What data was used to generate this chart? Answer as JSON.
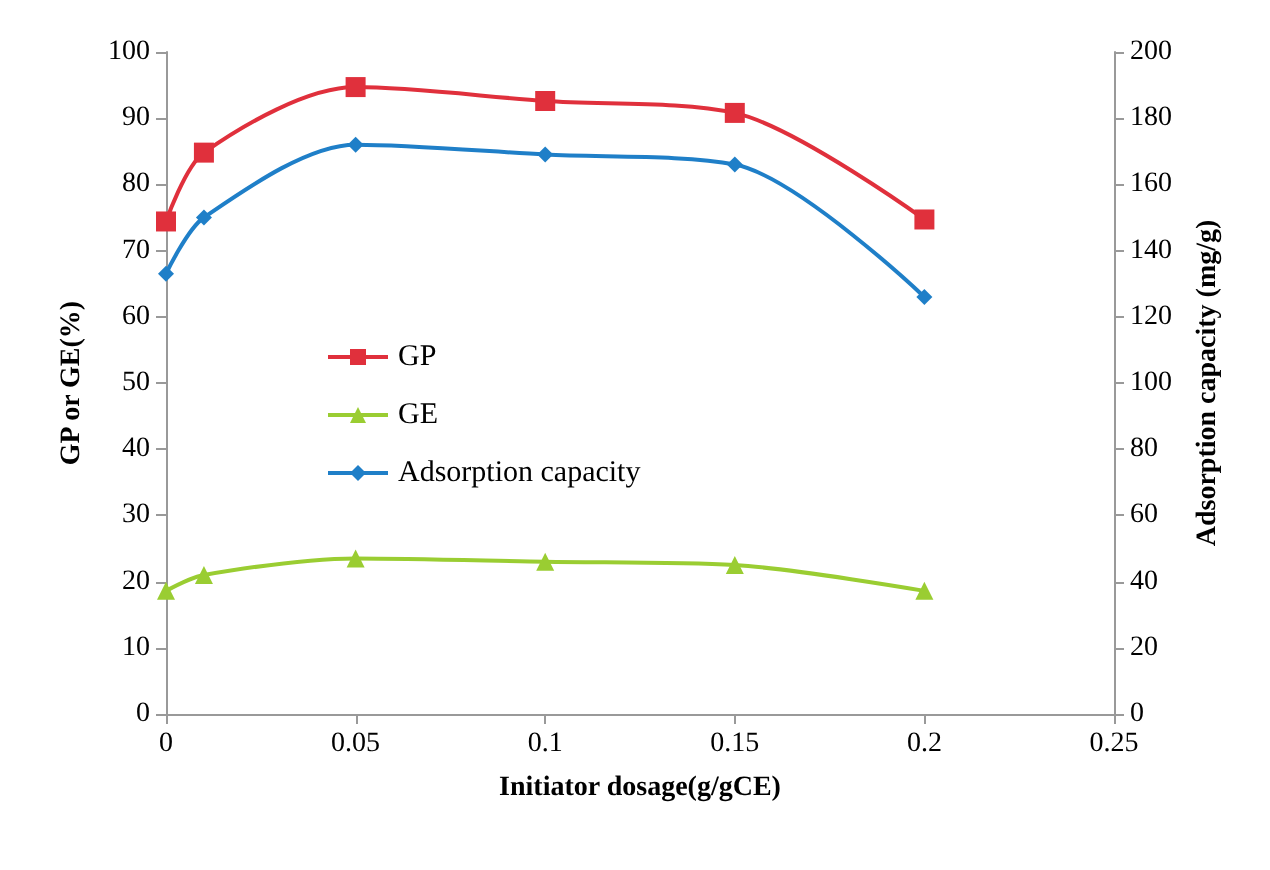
{
  "chart_data": {
    "type": "line",
    "xlabel": "Initiator dosage(g/gCE)",
    "ylabel": "GP or GE(%)",
    "y2label": "Adsorption capacity (mg/g)",
    "x": [
      0,
      0.01,
      0.05,
      0.1,
      0.15,
      0.2
    ],
    "series": [
      {
        "name": "GP",
        "color": "#e0303c",
        "marker": "square",
        "values": [
          74.4,
          84.8,
          94.7,
          92.6,
          90.8,
          74.7
        ]
      },
      {
        "name": "GE",
        "color": "#9acd32",
        "marker": "triangle",
        "values": [
          18.6,
          21,
          23.5,
          23,
          22.5,
          18.6
        ]
      },
      {
        "name": "Adsorption capacity",
        "color": "#1f7fc8",
        "marker": "diamond",
        "axis": "y2",
        "values": [
          133,
          150,
          172,
          169,
          166,
          126
        ]
      }
    ],
    "xlim": [
      0,
      0.25
    ],
    "xticks": [
      0,
      0.05,
      0.1,
      0.15,
      0.2,
      0.25
    ],
    "ylim": [
      0,
      100
    ],
    "yticks": [
      0,
      10,
      20,
      30,
      40,
      50,
      60,
      70,
      80,
      90,
      100
    ],
    "y2lim": [
      0,
      200
    ],
    "y2ticks": [
      0,
      20,
      40,
      60,
      80,
      100,
      120,
      140,
      160,
      180,
      200
    ],
    "grid": false,
    "legend": "center left"
  }
}
